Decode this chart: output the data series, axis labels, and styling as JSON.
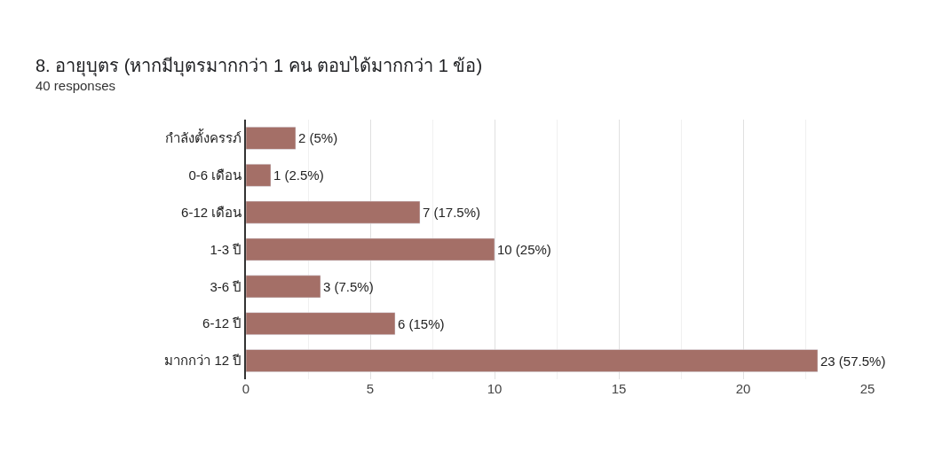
{
  "chart_data": {
    "type": "bar",
    "orientation": "horizontal",
    "title": "8. อายุบุตร (หากมีบุตรมากกว่า 1 คน ตอบได้มากกว่า 1 ข้อ)",
    "subtitle": "40 responses",
    "categories": [
      "กำลังตั้งครรภ์",
      "0-6 เดือน",
      "6-12 เดือน",
      "1-3 ปี",
      "3-6 ปี",
      "6-12 ปี",
      "มากกว่า 12 ปี"
    ],
    "values": [
      2,
      1,
      7,
      10,
      3,
      6,
      23
    ],
    "value_labels": [
      "2 (5%)",
      "1 (2.5%)",
      "7 (17.5%)",
      "10 (25%)",
      "3 (7.5%)",
      "6 (15%)",
      "23 (57.5%)"
    ],
    "color": "#a46f67",
    "xlim": [
      0,
      25
    ],
    "xticks": [
      0,
      5,
      10,
      15,
      20,
      25
    ],
    "grid": "x"
  }
}
